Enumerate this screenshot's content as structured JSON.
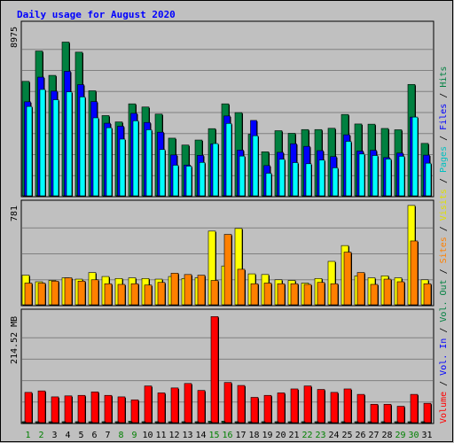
{
  "chart_data": {
    "type": "bar",
    "title": "Daily usage for August 2020",
    "days": [
      "1",
      "2",
      "3",
      "4",
      "5",
      "6",
      "7",
      "8",
      "9",
      "10",
      "11",
      "12",
      "13",
      "14",
      "15",
      "16",
      "17",
      "18",
      "19",
      "20",
      "21",
      "22",
      "23",
      "24",
      "25",
      "26",
      "27",
      "28",
      "29",
      "30",
      "31"
    ],
    "weekend_days": [
      "1",
      "2",
      "8",
      "9",
      "15",
      "16",
      "22",
      "23",
      "29",
      "30"
    ],
    "colors": {
      "hits": "#008040",
      "files": "#0000ff",
      "pages": "#00ffff",
      "visits": "#ffff00",
      "sites": "#ff8000",
      "kbytes": "#ff0000",
      "volin": "#0000ff",
      "volout": "#008040",
      "weekday_label": "#000000",
      "weekend_label": "#008000",
      "title": "#0000ff"
    },
    "panels": [
      {
        "name": "hits-files-pages",
        "max_label": "8975",
        "ymax": 8975,
        "series": [
          {
            "key": "hits",
            "values": [
              6135,
              7760,
              6455,
              8240,
              7700,
              5630,
              4300,
              3960,
              4930,
              4760,
              4380,
              3090,
              2720,
              2990,
              3600,
              4930,
              4460,
              3300,
              2360,
              3490,
              3350,
              3550,
              3550,
              3620,
              4360,
              3850,
              3840,
              3610,
              3540,
              5970,
              2810
            ]
          },
          {
            "key": "files",
            "values": [
              5040,
              6360,
              5610,
              6675,
              5960,
              5050,
              3890,
              3730,
              4420,
              3930,
              3410,
              2190,
              1650,
              2170,
              2780,
              4280,
              2450,
              4040,
              1620,
              2330,
              2790,
              2650,
              2420,
              2100,
              3270,
              2400,
              2440,
              2050,
              2290,
              4220,
              2180
            ]
          },
          {
            "key": "pages",
            "values": [
              4790,
              5700,
              5150,
              5570,
              5300,
              4180,
              3650,
              3040,
              4020,
              3540,
              2480,
              1640,
              1590,
              1790,
              2800,
              3880,
              2130,
              3220,
              1210,
              1960,
              1780,
              1720,
              1920,
              1500,
              2920,
              2240,
              2160,
              1970,
              2120,
              4220,
              1750
            ]
          }
        ]
      },
      {
        "name": "visits-sites",
        "max_label": "781",
        "ymax": 781,
        "series": [
          {
            "key": "visits",
            "values": [
              225,
              175,
              185,
              205,
              195,
              245,
              215,
              200,
              205,
              200,
              195,
              215,
              200,
              205,
              560,
              295,
              580,
              235,
              230,
              190,
              185,
              165,
              200,
              330,
              450,
              220,
              205,
              220,
              205,
              755,
              190
            ]
          },
          {
            "key": "sites",
            "values": [
              165,
              165,
              180,
              205,
              180,
              190,
              160,
              155,
              160,
              150,
              170,
              240,
              230,
              225,
              185,
              535,
              270,
              160,
              165,
              160,
              160,
              155,
              170,
              160,
              400,
              245,
              155,
              195,
              175,
              485,
              160
            ]
          }
        ]
      },
      {
        "name": "volume",
        "max_label": "214.52 MB",
        "ymax": 214.52,
        "series": [
          {
            "key": "kbytes",
            "values": [
              61,
              64,
              52,
              54,
              55,
              62,
              55,
              52,
              46,
              74,
              60,
              70,
              79,
              65,
              214,
              81,
              75,
              51,
              55,
              60,
              68,
              74,
              67,
              61,
              68,
              57,
              37,
              37,
              33,
              57,
              39
            ]
          },
          {
            "key": "volin",
            "values": [
              1,
              1,
              1,
              1,
              1,
              1,
              1,
              1,
              1,
              1,
              1,
              1,
              1,
              1,
              1,
              1,
              1,
              1,
              1,
              1,
              1,
              1,
              1,
              1,
              1,
              1,
              1,
              1,
              1,
              1,
              1
            ]
          },
          {
            "key": "volout",
            "values": [
              1,
              1,
              1,
              1,
              1,
              1,
              1,
              1,
              3,
              1,
              1,
              1,
              1,
              1,
              3,
              3,
              1,
              1,
              1,
              1,
              1,
              1,
              1,
              1,
              1,
              1,
              1,
              1,
              1,
              1,
              1
            ]
          }
        ]
      }
    ],
    "legend_right": [
      {
        "label": "Hits",
        "color": "#008040"
      },
      {
        "label": " / ",
        "color": "#000000"
      },
      {
        "label": "Files",
        "color": "#0000ff"
      },
      {
        "label": " / ",
        "color": "#000000"
      },
      {
        "label": "Pages",
        "color": "#00c0c0"
      },
      {
        "label": " / ",
        "color": "#000000"
      },
      {
        "label": "Visits",
        "color": "#e0e000"
      },
      {
        "label": " / ",
        "color": "#000000"
      },
      {
        "label": "Sites",
        "color": "#ff8000"
      },
      {
        "label": " / ",
        "color": "#000000"
      },
      {
        "label": "Vol. Out",
        "color": "#008040"
      },
      {
        "label": " / ",
        "color": "#000000"
      },
      {
        "label": "Vol. In",
        "color": "#0000ff"
      },
      {
        "label": " / ",
        "color": "#000000"
      },
      {
        "label": "Volume",
        "color": "#ff0000"
      }
    ],
    "grid": true
  }
}
